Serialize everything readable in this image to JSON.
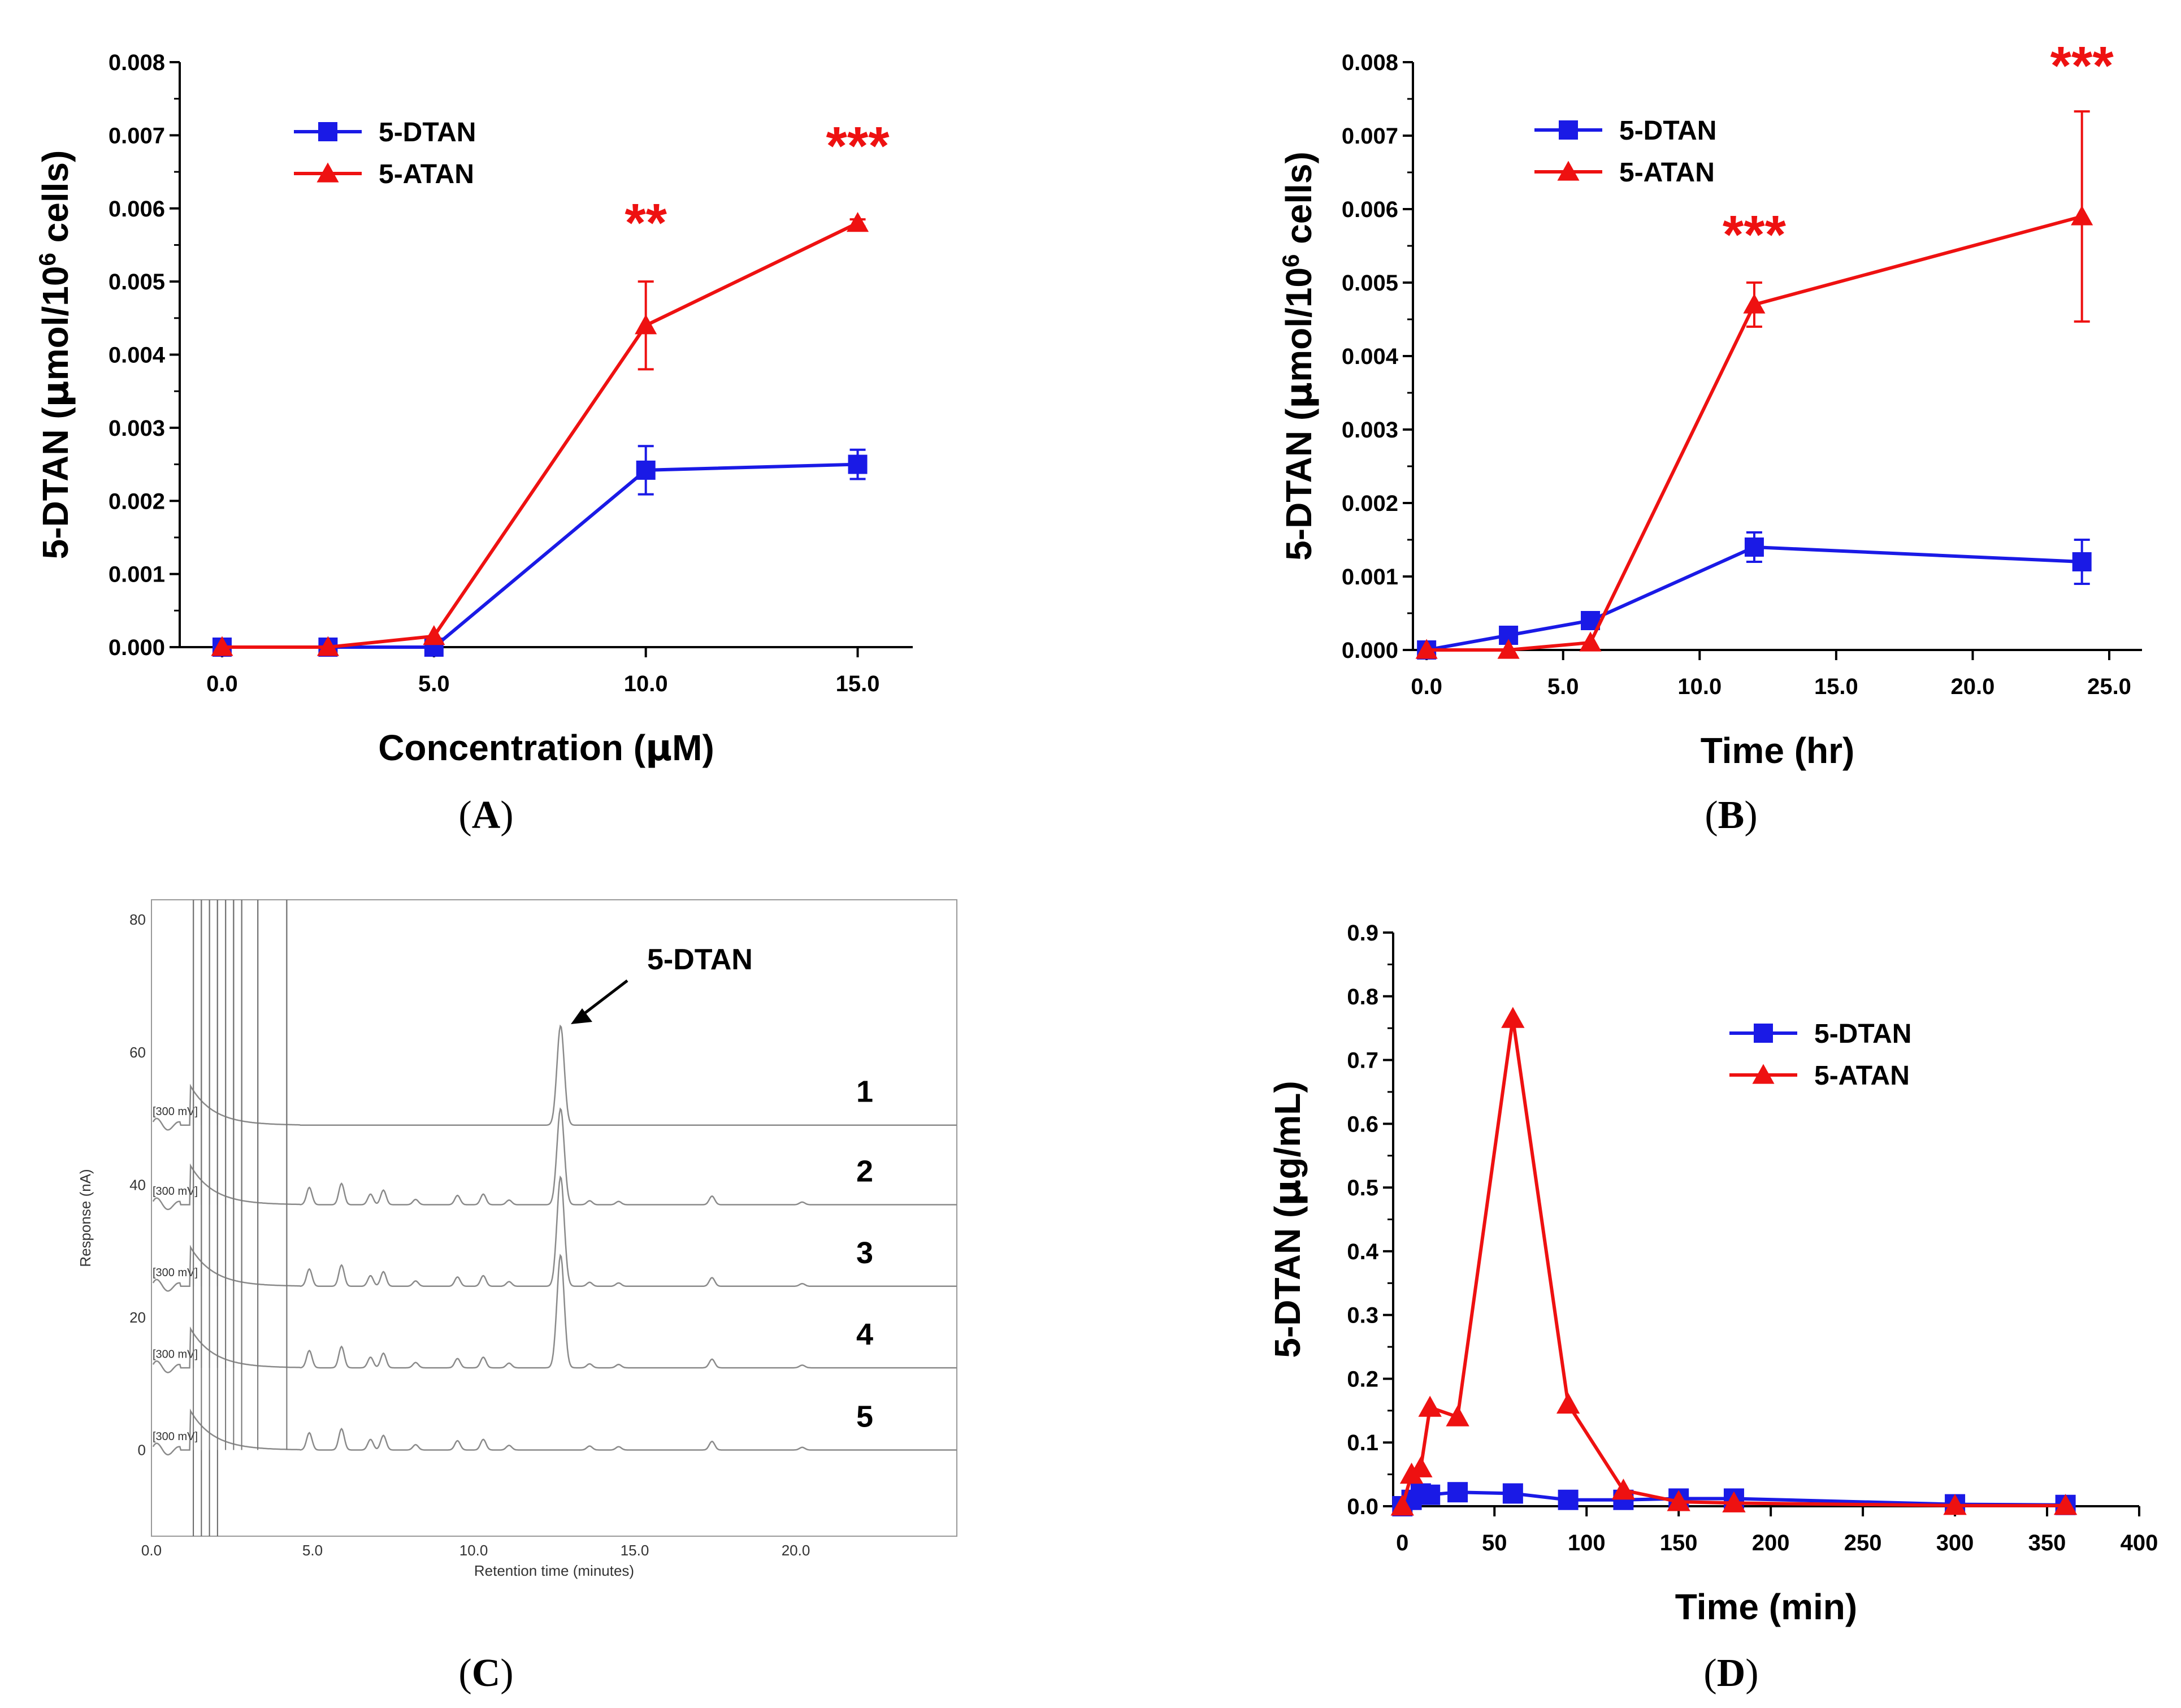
{
  "chart_data": [
    {
      "panel": "A",
      "type": "line",
      "xlabel": "Concentration (µM)",
      "ylabel": "5-DTAN (µmol/10^6 cells)",
      "ylabel_parts": {
        "pre": "5-DTAN (",
        "mu": "µ",
        "mid": "mol/10",
        "sup": "6",
        "post": " cells)"
      },
      "xlim": [
        -1,
        16.3
      ],
      "ylim": [
        0,
        0.008
      ],
      "xticks": [
        0,
        5,
        10,
        15
      ],
      "xtick_labels": [
        "0.0",
        "5.0",
        "10.0",
        "15.0"
      ],
      "yticks": [
        0,
        0.001,
        0.002,
        0.003,
        0.004,
        0.005,
        0.006,
        0.007,
        0.008
      ],
      "ytick_labels": [
        "0.000",
        "0.001",
        "0.002",
        "0.003",
        "0.004",
        "0.005",
        "0.006",
        "0.007",
        "0.008"
      ],
      "legend": {
        "position": "top-left",
        "entries": [
          "5-DTAN",
          "5-ATAN"
        ]
      },
      "series": [
        {
          "name": "5-DTAN",
          "color": "#1a1ae6",
          "marker": "square",
          "x": [
            0,
            2.5,
            5,
            10,
            15
          ],
          "y": [
            0,
            0,
            0,
            0.00242,
            0.0025
          ],
          "err": [
            0,
            0,
            0,
            0.00033,
            0.0002
          ]
        },
        {
          "name": "5-ATAN",
          "color": "#ee1111",
          "marker": "triangle",
          "x": [
            0,
            2.5,
            5,
            10,
            15
          ],
          "y": [
            0,
            0,
            0.00015,
            0.0044,
            0.0058
          ],
          "err": [
            0,
            0,
            0,
            0.0006,
            5e-05
          ]
        }
      ],
      "annotations": [
        {
          "text": "**",
          "x": 10,
          "y": 0.00555
        },
        {
          "text": "***",
          "x": 15,
          "y": 0.0066
        }
      ]
    },
    {
      "panel": "B",
      "type": "line",
      "xlabel": "Time (hr)",
      "ylabel": "5-DTAN (µmol/10^6 cells)",
      "ylabel_parts": {
        "pre": "5-DTAN (",
        "mu": "µ",
        "mid": "mol/10",
        "sup": "6",
        "post": " cells)"
      },
      "xlim": [
        -0.5,
        26.2
      ],
      "ylim": [
        0,
        0.008
      ],
      "xticks": [
        0,
        5,
        10,
        15,
        20,
        25
      ],
      "xtick_labels": [
        "0.0",
        "5.0",
        "10.0",
        "15.0",
        "20.0",
        "25.0"
      ],
      "yticks": [
        0,
        0.001,
        0.002,
        0.003,
        0.004,
        0.005,
        0.006,
        0.007,
        0.008
      ],
      "ytick_labels": [
        "0.000",
        "0.001",
        "0.002",
        "0.003",
        "0.004",
        "0.005",
        "0.006",
        "0.007",
        "0.008"
      ],
      "legend": {
        "position": "top-left",
        "entries": [
          "5-DTAN",
          "5-ATAN"
        ]
      },
      "series": [
        {
          "name": "5-DTAN",
          "color": "#1a1ae6",
          "marker": "square",
          "x": [
            0,
            3,
            6,
            12,
            24
          ],
          "y": [
            0,
            0.0002,
            0.0004,
            0.0014,
            0.0012
          ],
          "err": [
            0,
            0,
            0,
            0.0002,
            0.0003
          ]
        },
        {
          "name": "5-ATAN",
          "color": "#ee1111",
          "marker": "triangle",
          "x": [
            0,
            3,
            6,
            12,
            24
          ],
          "y": [
            0,
            0,
            0.0001,
            0.0047,
            0.0059
          ],
          "err": [
            0,
            0,
            0,
            0.0003,
            0.00143
          ]
        }
      ],
      "annotations": [
        {
          "text": "***",
          "x": 12,
          "y": 0.0054
        },
        {
          "text": "***",
          "x": 24,
          "y": 0.0077
        }
      ]
    },
    {
      "panel": "C",
      "type": "line",
      "title": "5-DTAN",
      "xlabel": "Retention time (minutes)",
      "ylabel": "Response (nA)",
      "xlim": [
        0,
        25
      ],
      "ylim": [
        -13,
        83
      ],
      "xticks": [
        0,
        5,
        10,
        15,
        20
      ],
      "xtick_labels": [
        "0.0",
        "5.0",
        "10.0",
        "15.0",
        "20.0"
      ],
      "yticks": [
        0,
        20,
        40,
        60,
        80
      ],
      "ytick_labels": [
        "0",
        "20",
        "40",
        "60",
        "80"
      ],
      "trace_labels": [
        "1",
        "2",
        "3",
        "4",
        "5"
      ],
      "trace_baselines": [
        49,
        37,
        24.7,
        12.4,
        0
      ],
      "range_label": "[300 mV]",
      "peak_retention_time": 12.7,
      "peak_heights": [
        15,
        14.5,
        16.5,
        17,
        0
      ]
    },
    {
      "panel": "D",
      "type": "line",
      "xlabel": "Time (min)",
      "ylabel": "5-DTAN (µg/mL)",
      "ylabel_parts": {
        "pre": "5-DTAN (",
        "mu": "µ",
        "post": "g/mL)"
      },
      "xlim": [
        -5,
        400
      ],
      "ylim": [
        0,
        0.9
      ],
      "xticks": [
        0,
        50,
        100,
        150,
        200,
        250,
        300,
        350,
        400
      ],
      "xtick_labels": [
        "0",
        "50",
        "100",
        "150",
        "200",
        "250",
        "300",
        "350",
        "400"
      ],
      "yticks": [
        0,
        0.1,
        0.2,
        0.3,
        0.4,
        0.5,
        0.6,
        0.7,
        0.8,
        0.9
      ],
      "ytick_labels": [
        "0.0",
        "0.1",
        "0.2",
        "0.3",
        "0.4",
        "0.5",
        "0.6",
        "0.7",
        "0.8",
        "0.9"
      ],
      "legend": {
        "position": "top-right",
        "entries": [
          "5-DTAN",
          "5-ATAN"
        ]
      },
      "series": [
        {
          "name": "5-DTAN",
          "color": "#1a1ae6",
          "marker": "square",
          "x": [
            0,
            5,
            10,
            15,
            30,
            60,
            90,
            120,
            150,
            180,
            300,
            360
          ],
          "y": [
            0,
            0.01,
            0.02,
            0.018,
            0.022,
            0.02,
            0.01,
            0.01,
            0.012,
            0.012,
            0.003,
            0.002
          ]
        },
        {
          "name": "5-ATAN",
          "color": "#ee1111",
          "marker": "triangle",
          "x": [
            0,
            5,
            10,
            15,
            30,
            60,
            90,
            120,
            150,
            180,
            300,
            360
          ],
          "y": [
            0,
            0.05,
            0.06,
            0.155,
            0.14,
            0.765,
            0.16,
            0.025,
            0.007,
            0.005,
            0.001,
            0.001
          ]
        }
      ]
    }
  ],
  "panel_labels": [
    "A",
    "B",
    "C",
    "D"
  ]
}
